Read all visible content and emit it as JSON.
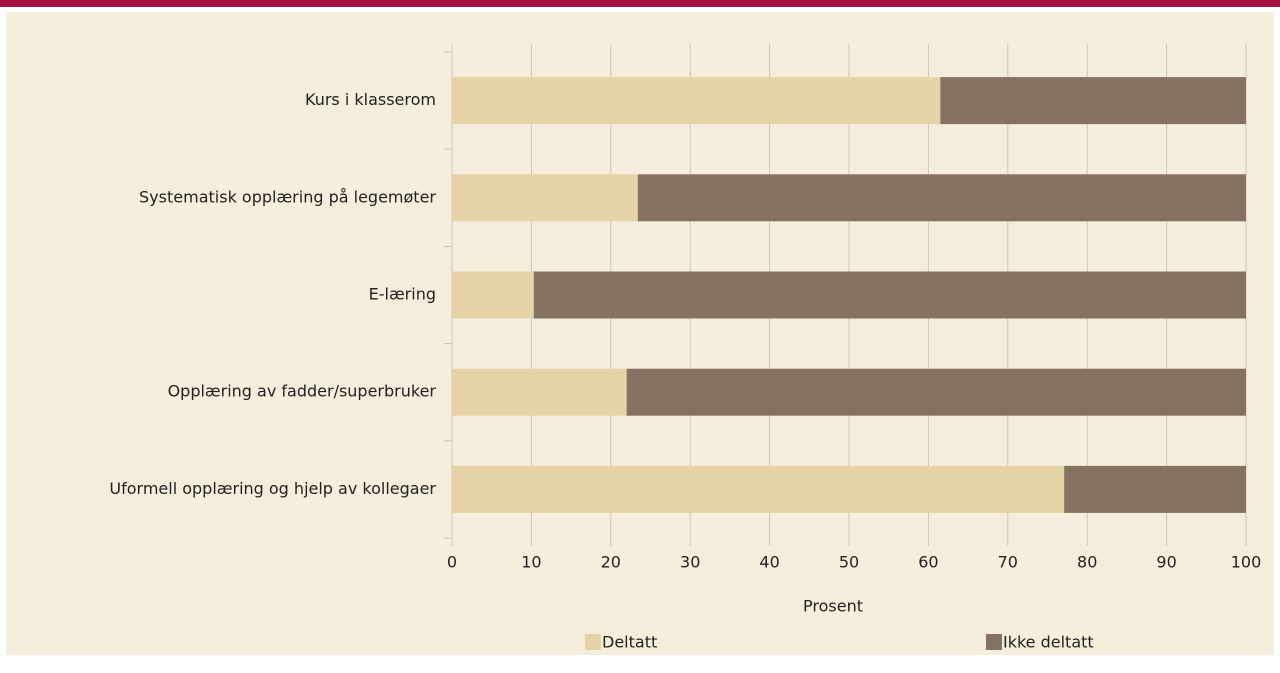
{
  "chart_data": {
    "type": "bar",
    "orientation": "horizontal",
    "stacked": true,
    "categories": [
      "Kurs i klasserom",
      "Systematisk opplæring på legemøter",
      "E-læring",
      "Opplæring av fadder/superbruker",
      "Uformell opplæring og hjelp av kollegaer"
    ],
    "series": [
      {
        "name": "Deltatt",
        "color": "#e6d3a8",
        "values": [
          61.5,
          23.4,
          10.3,
          22.0,
          77.1
        ]
      },
      {
        "name": "Ikke deltatt",
        "color": "#857262",
        "values": [
          38.5,
          76.6,
          89.7,
          78.0,
          22.9
        ]
      }
    ],
    "xlim": [
      0,
      100
    ],
    "xticks": [
      0,
      10,
      20,
      30,
      40,
      50,
      60,
      70,
      80,
      90,
      100
    ],
    "xlabel": "Prosent",
    "grid": true,
    "legend": "bottom"
  }
}
